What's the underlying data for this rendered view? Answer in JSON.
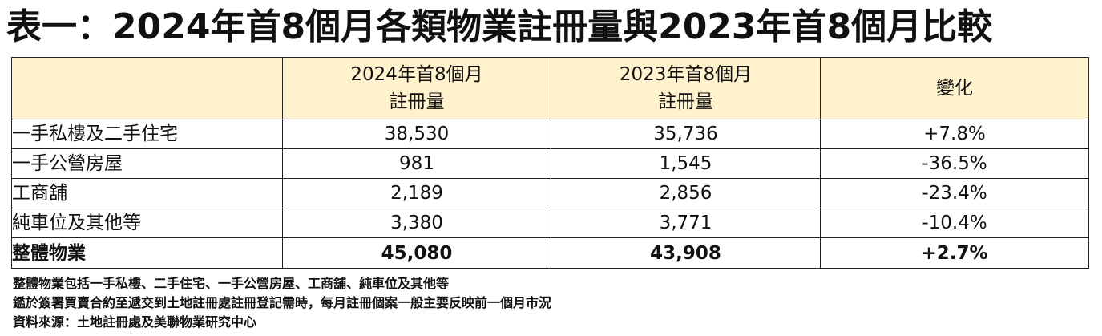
{
  "title": "表一：2024年首8個月各類物業註冊量與2023年首8個月比較",
  "table": {
    "headers": [
      {
        "line1": "",
        "line2": ""
      },
      {
        "line1": "2024年首8個月",
        "line2": "註冊量"
      },
      {
        "line1": "2023年首8個月",
        "line2": "註冊量"
      },
      {
        "line1": "變化",
        "line2": ""
      }
    ],
    "rows": [
      {
        "category": "一手私樓及二手住宅",
        "y2024": "38,530",
        "y2023": "35,736",
        "change": "+7.8%"
      },
      {
        "category": "一手公營房屋",
        "y2024": "981",
        "y2023": "1,545",
        "change": "-36.5%"
      },
      {
        "category": "工商舖",
        "y2024": "2,189",
        "y2023": "2,856",
        "change": "-23.4%"
      },
      {
        "category": "純車位及其他等",
        "y2024": "3,380",
        "y2023": "3,771",
        "change": "-10.4%"
      }
    ],
    "total": {
      "category": "整體物業",
      "y2024": "45,080",
      "y2023": "43,908",
      "change": "+2.7%"
    }
  },
  "notes": [
    "整體物業包括一手私樓、二手住宅、一手公營房屋、工商舖、純車位及其他等",
    "鑑於簽署買賣合約至遞交到土地註冊處註冊登記需時，每月註冊個案一般主要反映前一個月市況",
    "資料來源：土地註冊處及美聯物業研究中心"
  ],
  "colors": {
    "header_background": "#fff2cc",
    "border": "#222222",
    "text": "#111111"
  }
}
